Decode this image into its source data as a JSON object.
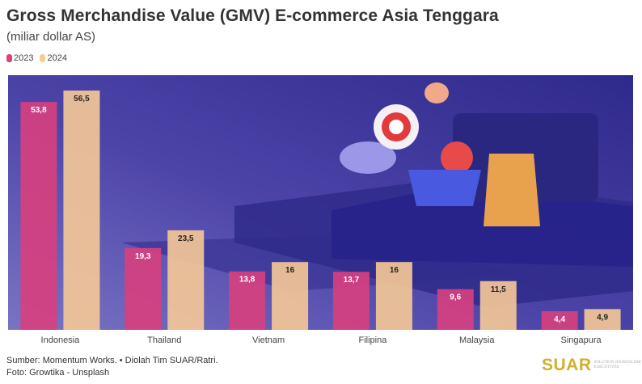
{
  "title": "Gross Merchandise Value (GMV) E-commerce Asia Tenggara",
  "subtitle": "(miliar dollar AS)",
  "footer": {
    "source": "Sumber: Momentum Works. • Diolah Tim SUAR/Ratri.",
    "photo": "Foto: Growtika - Unsplash"
  },
  "logo": {
    "mark": "SUAR",
    "tagline": "SOLUTION JOURNALISM for EXECUTIVES"
  },
  "colors": {
    "2023": "#d6407f",
    "2024": "#f3c797",
    "background": "#4a3f9e"
  },
  "chart_data": {
    "type": "bar",
    "title": "Gross Merchandise Value (GMV) E-commerce Asia Tenggara",
    "subtitle": "(miliar dollar AS)",
    "categories": [
      "Indonesia",
      "Thailand",
      "Vietnam",
      "Filipina",
      "Malaysia",
      "Singapura"
    ],
    "series": [
      {
        "name": "2023",
        "values": [
          53.8,
          19.3,
          13.8,
          13.7,
          9.6,
          4.4
        ],
        "labels": [
          "53,8",
          "19,3",
          "13,8",
          "13,7",
          "9,6",
          "4,4"
        ]
      },
      {
        "name": "2024",
        "values": [
          56.5,
          23.5,
          16,
          16,
          11.5,
          4.9
        ],
        "labels": [
          "56,5",
          "23,5",
          "16",
          "16",
          "11,5",
          "4,9"
        ]
      }
    ],
    "ylim": [
      0,
      60
    ],
    "grid": false,
    "legend": "top-left",
    "data_labels": "inside-top"
  }
}
